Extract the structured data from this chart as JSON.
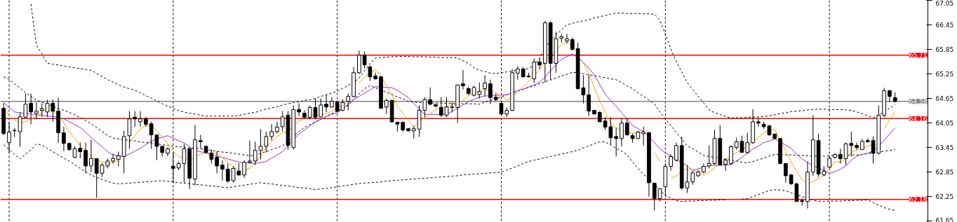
{
  "chart_data": {
    "type": "candlestick",
    "categories": [
      null,
      null,
      null,
      null,
      null,
      null,
      null,
      null,
      null,
      null,
      null,
      null,
      null,
      null,
      null,
      null,
      null,
      null,
      null,
      null,
      null,
      null,
      null,
      null,
      null,
      null,
      null,
      null,
      null,
      null,
      null,
      null,
      null,
      null,
      null,
      null,
      null,
      null,
      null,
      null,
      null,
      null,
      null,
      null,
      null,
      null,
      null,
      null,
      null,
      null,
      null,
      null,
      null,
      null,
      null,
      null,
      null,
      null,
      null,
      null,
      null,
      null,
      null,
      null,
      null,
      null,
      null,
      null,
      null,
      null,
      null,
      null,
      null,
      null,
      null,
      null,
      null,
      null,
      null,
      null,
      null,
      null,
      null,
      null,
      null,
      null,
      null,
      null,
      null,
      null,
      null,
      null,
      null,
      null,
      null,
      null,
      null,
      null,
      null,
      null,
      null,
      null,
      null,
      null,
      null,
      null,
      null,
      null,
      null,
      null,
      null,
      null,
      null,
      null,
      null,
      null,
      null,
      null,
      null,
      null,
      null,
      null,
      null,
      null,
      null,
      null,
      null,
      null,
      null,
      null,
      null,
      null,
      null,
      null,
      null,
      null,
      null,
      null,
      null,
      null,
      null,
      null,
      null,
      null,
      null,
      null,
      null,
      null,
      null,
      null,
      null,
      null,
      null,
      null,
      null,
      null,
      null,
      null,
      null,
      null,
      null,
      null,
      null,
      null
    ],
    "ohlc": [
      [
        64.41,
        64.53,
        63.76,
        63.79
      ],
      [
        63.57,
        64.08,
        63.33,
        63.83
      ],
      [
        63.86,
        63.93,
        63.71,
        63.87
      ],
      [
        63.84,
        64.31,
        63.47,
        64.2
      ],
      [
        64.19,
        64.77,
        64.19,
        64.51
      ],
      [
        64.53,
        64.77,
        64.02,
        64.32
      ],
      [
        64.29,
        64.56,
        64.14,
        64.34
      ],
      [
        64.36,
        64.53,
        64.2,
        64.4
      ],
      [
        64.32,
        64.62,
        64.2,
        64.53
      ],
      [
        64.53,
        64.62,
        64.08,
        64.34
      ],
      [
        64.34,
        64.67,
        63.57,
        63.81
      ],
      [
        63.81,
        63.96,
        63.36,
        63.55
      ],
      [
        63.55,
        63.57,
        63.37,
        63.4
      ],
      [
        63.21,
        63.48,
        63.19,
        63.42
      ],
      [
        63.43,
        63.57,
        63.19,
        63.35
      ],
      [
        63.38,
        63.57,
        62.82,
        63.0
      ],
      [
        63.0,
        63.64,
        62.85,
        63.18
      ],
      [
        63.18,
        63.18,
        62.22,
        62.82
      ],
      [
        62.82,
        63.07,
        62.73,
        63.02
      ],
      [
        63.0,
        63.18,
        62.94,
        63.12
      ],
      [
        63.12,
        63.3,
        63.06,
        63.18
      ],
      [
        63.16,
        63.35,
        62.99,
        63.25
      ],
      [
        63.23,
        63.86,
        62.82,
        63.72
      ],
      [
        63.74,
        64.34,
        63.42,
        64.15
      ],
      [
        64.19,
        64.34,
        63.96,
        64.15
      ],
      [
        64.08,
        64.34,
        63.96,
        64.15
      ],
      [
        64.15,
        64.2,
        63.96,
        64.02
      ],
      [
        64.03,
        64.08,
        63.42,
        63.76
      ],
      [
        63.76,
        63.76,
        63.14,
        63.48
      ],
      [
        63.48,
        63.48,
        63.23,
        63.33
      ],
      [
        63.31,
        63.45,
        63.24,
        63.42
      ],
      [
        62.99,
        63.33,
        62.59,
        62.94
      ],
      [
        62.95,
        63.11,
        62.9,
        63.06
      ],
      [
        63.06,
        63.54,
        62.59,
        63.42
      ],
      [
        63.42,
        63.42,
        62.44,
        62.7
      ],
      [
        62.68,
        64.0,
        62.52,
        63.64
      ],
      [
        63.62,
        63.76,
        63.43,
        63.59
      ],
      [
        63.48,
        63.5,
        63.31,
        63.33
      ],
      [
        63.31,
        63.4,
        63.06,
        63.16
      ],
      [
        63.21,
        63.36,
        62.82,
        63.0
      ],
      [
        63.02,
        63.14,
        62.64,
        62.92
      ],
      [
        62.92,
        63.06,
        62.59,
        62.63
      ],
      [
        62.64,
        62.99,
        62.59,
        62.94
      ],
      [
        62.87,
        63.07,
        62.76,
        62.78
      ],
      [
        62.78,
        63.14,
        62.71,
        63.09
      ],
      [
        63.09,
        63.62,
        63.06,
        63.12
      ],
      [
        63.12,
        63.59,
        63.02,
        63.38
      ],
      [
        63.38,
        63.9,
        63.16,
        63.48
      ],
      [
        63.48,
        63.84,
        63.33,
        63.72
      ],
      [
        63.72,
        64.02,
        63.62,
        63.84
      ],
      [
        63.84,
        64.08,
        63.79,
        63.95
      ],
      [
        63.96,
        64.34,
        63.84,
        64.2
      ],
      [
        64.24,
        64.34,
        63.4,
        63.5
      ],
      [
        63.45,
        64.48,
        63.4,
        64.38
      ],
      [
        64.38,
        64.53,
        64.22,
        64.32
      ],
      [
        64.29,
        64.36,
        64.14,
        64.19
      ],
      [
        64.19,
        64.48,
        64.14,
        64.43
      ],
      [
        64.43,
        64.65,
        64.14,
        64.19
      ],
      [
        64.2,
        64.65,
        64.19,
        64.49
      ],
      [
        64.51,
        64.74,
        64.31,
        64.44
      ],
      [
        64.44,
        64.68,
        64.43,
        64.58
      ],
      [
        64.56,
        64.6,
        64.31,
        64.34
      ],
      [
        64.36,
        64.63,
        64.34,
        64.55
      ],
      [
        64.58,
        64.77,
        64.36,
        64.7
      ],
      [
        64.7,
        65.42,
        64.68,
        65.28
      ],
      [
        65.28,
        65.82,
        65.25,
        65.71
      ],
      [
        65.71,
        65.8,
        65.39,
        65.47
      ],
      [
        65.42,
        65.46,
        65.08,
        65.18
      ],
      [
        65.2,
        65.28,
        65.11,
        65.13
      ],
      [
        65.18,
        65.2,
        64.39,
        64.41
      ],
      [
        64.44,
        64.65,
        64.27,
        64.6
      ],
      [
        64.6,
        64.63,
        64.05,
        64.08
      ],
      [
        64.07,
        64.08,
        63.84,
        64.02
      ],
      [
        64.07,
        64.08,
        63.83,
        63.88
      ],
      [
        63.91,
        63.93,
        63.83,
        63.86
      ],
      [
        63.86,
        63.98,
        63.67,
        63.91
      ],
      [
        63.9,
        64.48,
        63.71,
        64.36
      ],
      [
        64.36,
        64.68,
        64.19,
        64.62
      ],
      [
        64.62,
        64.92,
        64.48,
        64.51
      ],
      [
        64.5,
        64.53,
        64.43,
        64.46
      ],
      [
        64.43,
        64.68,
        64.2,
        64.24
      ],
      [
        64.24,
        64.68,
        64.19,
        64.44
      ],
      [
        64.44,
        64.56,
        64.31,
        64.43
      ],
      [
        64.43,
        64.99,
        64.05,
        64.98
      ],
      [
        65.01,
        65.35,
        64.87,
        64.96
      ],
      [
        64.89,
        64.94,
        64.73,
        64.77
      ],
      [
        64.73,
        64.96,
        64.7,
        64.92
      ],
      [
        64.75,
        65.04,
        64.65,
        64.82
      ],
      [
        64.89,
        65.22,
        64.7,
        65.03
      ],
      [
        65.01,
        65.11,
        64.51,
        64.67
      ],
      [
        64.68,
        64.77,
        64.58,
        64.62
      ],
      [
        64.53,
        64.6,
        64.22,
        64.27
      ],
      [
        64.27,
        64.43,
        64.2,
        64.36
      ],
      [
        64.36,
        65.37,
        64.34,
        65.28
      ],
      [
        65.27,
        65.44,
        65.11,
        65.37
      ],
      [
        65.37,
        65.42,
        65.16,
        65.18
      ],
      [
        65.2,
        65.28,
        65.16,
        65.18
      ],
      [
        65.13,
        65.63,
        65.03,
        65.54
      ],
      [
        65.54,
        65.63,
        65.37,
        65.47
      ],
      [
        65.51,
        66.54,
        65.04,
        66.5
      ],
      [
        66.5,
        66.54,
        65.11,
        65.51
      ],
      [
        65.51,
        66.28,
        65.28,
        66.11
      ],
      [
        66.12,
        66.23,
        66.02,
        66.16
      ],
      [
        66.06,
        66.23,
        65.99,
        66.11
      ],
      [
        66.09,
        66.14,
        65.82,
        65.85
      ],
      [
        65.87,
        66.02,
        64.87,
        64.89
      ],
      [
        64.91,
        65.22,
        64.53,
        64.74
      ],
      [
        64.74,
        65.22,
        64.22,
        64.34
      ],
      [
        64.36,
        64.36,
        64.26,
        64.27
      ],
      [
        64.31,
        64.34,
        64.08,
        64.08
      ],
      [
        64.1,
        64.19,
        63.88,
        63.95
      ],
      [
        63.96,
        64.19,
        63.52,
        63.69
      ],
      [
        63.72,
        63.93,
        63.23,
        63.67
      ],
      [
        63.67,
        64.17,
        63.48,
        64.05
      ],
      [
        64.05,
        64.17,
        63.74,
        63.76
      ],
      [
        63.74,
        63.79,
        63.57,
        63.67
      ],
      [
        63.67,
        63.86,
        63.66,
        63.83
      ],
      [
        63.79,
        63.96,
        63.5,
        63.83
      ],
      [
        63.81,
        63.84,
        62.25,
        62.59
      ],
      [
        62.58,
        62.59,
        61.91,
        62.2
      ],
      [
        62.2,
        62.46,
        62.13,
        62.44
      ],
      [
        62.49,
        63.06,
        62.25,
        62.99
      ],
      [
        62.99,
        63.28,
        62.88,
        63.23
      ],
      [
        63.14,
        63.57,
        63.11,
        63.5
      ],
      [
        63.5,
        63.71,
        62.42,
        62.46
      ],
      [
        62.46,
        63.02,
        62.34,
        62.61
      ],
      [
        62.61,
        62.88,
        62.54,
        62.83
      ],
      [
        62.76,
        62.9,
        62.73,
        62.85
      ],
      [
        62.85,
        63.06,
        62.82,
        62.99
      ],
      [
        63.0,
        63.5,
        62.94,
        63.06
      ],
      [
        63.06,
        63.88,
        63.02,
        63.67
      ],
      [
        63.67,
        64.0,
        63.02,
        63.02
      ],
      [
        63.04,
        63.19,
        62.88,
        63.14
      ],
      [
        63.06,
        63.5,
        63.02,
        63.47
      ],
      [
        63.45,
        63.69,
        63.4,
        63.59
      ],
      [
        63.6,
        63.74,
        63.33,
        63.33
      ],
      [
        63.33,
        63.81,
        63.3,
        63.57
      ],
      [
        63.57,
        64.39,
        63.54,
        64.08
      ],
      [
        64.08,
        64.17,
        63.96,
        64.05
      ],
      [
        64.02,
        64.08,
        63.91,
        63.96
      ],
      [
        63.98,
        64.0,
        63.74,
        63.76
      ],
      [
        63.78,
        63.79,
        63.66,
        63.67
      ],
      [
        63.67,
        63.67,
        63.04,
        63.06
      ],
      [
        63.06,
        63.06,
        62.59,
        62.76
      ],
      [
        62.78,
        62.8,
        62.54,
        62.56
      ],
      [
        62.56,
        62.59,
        62.13,
        62.13
      ],
      [
        62.15,
        62.2,
        62.03,
        62.13
      ],
      [
        62.13,
        63.11,
        61.96,
        62.85
      ],
      [
        62.85,
        64.24,
        62.76,
        63.64
      ],
      [
        63.62,
        63.79,
        62.73,
        62.8
      ],
      [
        62.78,
        62.99,
        62.75,
        62.87
      ],
      [
        62.97,
        63.23,
        62.94,
        63.19
      ],
      [
        63.21,
        63.31,
        63.18,
        63.28
      ],
      [
        63.28,
        63.42,
        63.06,
        63.18
      ],
      [
        63.18,
        63.57,
        63.02,
        63.54
      ],
      [
        63.55,
        63.84,
        63.23,
        63.5
      ],
      [
        63.5,
        63.57,
        63.4,
        63.45
      ],
      [
        63.4,
        63.66,
        63.4,
        63.6
      ],
      [
        63.62,
        63.67,
        63.57,
        63.59
      ],
      [
        63.62,
        63.72,
        63.06,
        63.31
      ],
      [
        63.31,
        64.48,
        63.28,
        64.24
      ],
      [
        64.24,
        64.91,
        64.19,
        64.84
      ],
      [
        64.84,
        64.86,
        64.56,
        64.7
      ],
      [
        64.67,
        64.8,
        64.55,
        64.58
      ]
    ],
    "color": "#000000",
    "series": [
      {
        "type": "line",
        "color": "#000000",
        "line_style": "dashed",
        "values": [
          null,
          null,
          null,
          null,
          null,
          66.96,
          65.95,
          65.74,
          65.51,
          65.49,
          65.47,
          65.44,
          65.42,
          65.4,
          65.38,
          65.36,
          65.34,
          65.26,
          65.19,
          65.11,
          65.05,
          64.98,
          64.93,
          64.89,
          64.85,
          64.79,
          64.72,
          64.66,
          64.59,
          64.52,
          64.46,
          64.41,
          64.35,
          64.32,
          64.29,
          64.27,
          64.24,
          64.22,
          64.22,
          64.22,
          64.22,
          64.22,
          64.22,
          64.24,
          64.26,
          64.29,
          64.31,
          64.35,
          64.39,
          64.42,
          64.45,
          64.49,
          64.52,
          64.55,
          64.57,
          64.6,
          64.62,
          64.65,
          64.7,
          64.74,
          64.78,
          64.83,
          64.9,
          64.97,
          65.04,
          65.15,
          65.33,
          65.51,
          65.64,
          65.65,
          65.66,
          65.67,
          65.68,
          65.68,
          65.68,
          65.67,
          65.67,
          65.67,
          65.66,
          65.66,
          65.65,
          65.65,
          65.65,
          65.64,
          65.57,
          65.51,
          65.4,
          65.34,
          65.31,
          65.27,
          65.26,
          65.28,
          65.3,
          65.32,
          65.34,
          65.36,
          65.38,
          65.46,
          65.63,
          65.89,
          66.06,
          66.2,
          66.33,
          66.45,
          66.49,
          66.52,
          66.55,
          66.58,
          66.62,
          66.65,
          66.68,
          66.71,
          66.74,
          66.74,
          66.73,
          66.73,
          66.73,
          66.72,
          66.72,
          66.71,
          66.57,
          66.22,
          65.86,
          65.55,
          65.3,
          65.04,
          64.87,
          64.71,
          64.54,
          64.37,
          64.3,
          64.26,
          64.21,
          64.17,
          64.18,
          64.18,
          64.19,
          64.19,
          64.2,
          64.21,
          64.23,
          64.25,
          64.28,
          64.3,
          64.33,
          64.34,
          64.35,
          64.37,
          64.38,
          64.39,
          64.39,
          64.38,
          64.38,
          64.38,
          64.37,
          64.36,
          64.32,
          64.28,
          64.23,
          64.18,
          64.24,
          64.33,
          64.41,
          64.5
        ]
      },
      {
        "type": "line",
        "color": "#000000",
        "line_style": "dashed",
        "values": [
          65.18,
          65.12,
          65.01,
          64.9,
          64.79,
          64.7,
          64.61,
          64.56,
          64.51,
          64.46,
          64.41,
          64.36,
          64.31,
          64.25,
          64.18,
          64.11,
          64.03,
          63.94,
          63.84,
          63.75,
          63.68,
          63.66,
          63.64,
          63.63,
          63.61,
          63.59,
          63.57,
          63.56,
          63.54,
          63.52,
          63.5,
          63.48,
          63.47,
          63.46,
          63.44,
          63.43,
          63.42,
          63.4,
          63.38,
          63.36,
          63.34,
          63.33,
          63.31,
          63.29,
          63.27,
          63.25,
          63.26,
          63.31,
          63.35,
          63.4,
          63.44,
          63.49,
          63.59,
          63.72,
          63.84,
          63.94,
          64.01,
          64.08,
          64.14,
          64.21,
          64.28,
          64.34,
          64.41,
          64.48,
          64.62,
          64.76,
          64.89,
          64.97,
          64.91,
          64.86,
          64.8,
          64.75,
          64.69,
          64.64,
          64.58,
          64.56,
          64.55,
          64.55,
          64.54,
          64.54,
          64.54,
          64.53,
          64.53,
          64.53,
          64.52,
          64.52,
          64.52,
          64.51,
          64.56,
          64.6,
          64.65,
          64.69,
          64.74,
          64.78,
          64.83,
          64.87,
          64.92,
          64.96,
          65.01,
          65.06,
          65.1,
          65.15,
          65.2,
          65.24,
          65.29,
          65.28,
          65.26,
          65.23,
          65.21,
          65.18,
          65.16,
          65.13,
          65.11,
          65.04,
          64.96,
          64.89,
          64.79,
          64.7,
          64.61,
          64.52,
          64.32,
          64.15,
          63.99,
          63.82,
          63.65,
          63.49,
          63.42,
          63.34,
          63.26,
          63.23,
          63.21,
          63.19,
          63.16,
          63.14,
          63.12,
          63.09,
          63.07,
          63.11,
          63.15,
          63.19,
          63.24,
          63.28,
          63.28,
          63.27,
          63.27,
          63.26,
          63.26,
          63.25,
          63.24,
          63.24,
          63.24,
          63.25,
          63.25,
          63.26,
          63.26,
          63.27,
          63.27,
          63.28,
          63.3,
          63.32,
          63.34,
          63.36,
          63.38,
          63.4
        ]
      },
      {
        "type": "line",
        "color": "#000000",
        "line_style": "dashed",
        "values": [
          63.52,
          63.4,
          63.28,
          63.17,
          63.29,
          63.39,
          63.54,
          63.51,
          63.43,
          63.35,
          63.27,
          63.19,
          63.12,
          63.03,
          62.94,
          62.86,
          62.78,
          62.72,
          62.67,
          62.62,
          62.58,
          62.56,
          62.57,
          62.58,
          62.59,
          62.6,
          62.61,
          62.62,
          62.63,
          62.64,
          62.62,
          62.61,
          62.59,
          62.58,
          62.56,
          62.55,
          62.54,
          62.52,
          62.51,
          62.5,
          62.48,
          62.47,
          62.49,
          62.51,
          62.53,
          62.55,
          62.57,
          62.59,
          62.57,
          62.56,
          62.54,
          62.52,
          62.51,
          62.49,
          62.47,
          62.46,
          62.44,
          62.42,
          62.44,
          62.45,
          62.47,
          62.49,
          62.51,
          62.53,
          62.55,
          62.57,
          62.58,
          62.59,
          62.6,
          62.61,
          62.63,
          62.64,
          62.65,
          62.66,
          62.67,
          62.68,
          62.69,
          62.7,
          62.71,
          62.72,
          62.73,
          62.74,
          62.75,
          62.76,
          62.78,
          62.79,
          62.8,
          62.81,
          62.82,
          62.83,
          62.84,
          62.85,
          62.9,
          62.95,
          63.0,
          63.06,
          63.11,
          63.14,
          63.17,
          63.2,
          63.23,
          63.26,
          63.29,
          63.32,
          63.35,
          63.38,
          63.44,
          63.49,
          63.54,
          63.59,
          63.59,
          63.51,
          63.43,
          63.36,
          63.28,
          63.09,
          62.94,
          62.79,
          62.7,
          62.56,
          62.41,
          62.27,
          62.21,
          62.15,
          62.13,
          62.14,
          62.14,
          62.15,
          62.15,
          62.16,
          62.16,
          62.17,
          62.17,
          null,
          null,
          62.19,
          62.2,
          62.25,
          62.3,
          62.35,
          62.4,
          62.42,
          62.41,
          62.39,
          62.34,
          62.3,
          62.25,
          62.21,
          62.16,
          62.13,
          62.13,
          62.14,
          62.14,
          62.14,
          62.15,
          62.15,
          62.16,
          62.16,
          62.17,
          62.1,
          62.04,
          61.98,
          61.94,
          61.91
        ]
      },
      {
        "type": "line",
        "color": "#9932cc",
        "line_style": "solid",
        "values": [
          64.55,
          64.43,
          64.32,
          64.3,
          64.28,
          64.27,
          64.25,
          64.24,
          64.22,
          64.21,
          64.19,
          64.15,
          64.08,
          64.01,
          63.94,
          63.82,
          63.7,
          63.58,
          63.47,
          63.35,
          63.27,
          63.25,
          63.23,
          63.29,
          63.36,
          63.43,
          63.52,
          63.61,
          63.66,
          63.7,
          63.74,
          63.68,
          63.62,
          63.56,
          63.47,
          63.38,
          63.35,
          63.31,
          63.28,
          63.24,
          63.21,
          63.17,
          63.13,
          63.1,
          63.07,
          63.07,
          63.06,
          63.08,
          63.11,
          63.19,
          63.27,
          63.35,
          63.5,
          63.64,
          63.78,
          63.88,
          63.98,
          64.07,
          64.14,
          64.21,
          64.26,
          64.3,
          64.39,
          64.51,
          64.63,
          64.7,
          64.78,
          64.86,
          64.94,
          64.93,
          64.92,
          64.91,
          64.85,
          64.76,
          64.67,
          64.53,
          64.39,
          64.26,
          64.26,
          64.26,
          64.26,
          64.26,
          64.33,
          64.41,
          64.49,
          64.57,
          64.63,
          64.68,
          64.71,
          64.72,
          64.73,
          64.73,
          64.74,
          64.79,
          64.85,
          64.88,
          64.93,
          64.98,
          65.05,
          65.17,
          65.33,
          65.47,
          65.61,
          65.67,
          65.74,
          65.65,
          65.53,
          65.39,
          65.23,
          64.99,
          64.76,
          64.6,
          64.46,
          64.3,
          64.15,
          63.99,
          63.91,
          63.84,
          63.72,
          63.57,
          63.42,
          63.32,
          63.25,
          63.14,
          63.09,
          63.0,
          62.89,
          62.93,
          62.97,
          63.01,
          63.02,
          63.02,
          63.02,
          63.03,
          63.12,
          63.21,
          63.31,
          63.41,
          63.49,
          63.57,
          63.61,
          63.66,
          63.59,
          63.51,
          63.43,
          63.29,
          63.17,
          63.09,
          63.0,
          62.95,
          62.89,
          62.82,
          62.86,
          62.92,
          63.0,
          63.14,
          63.24,
          63.28,
          63.31,
          63.37,
          63.48,
          63.63,
          63.78,
          63.93
        ]
      },
      {
        "type": "line",
        "color": "#ffa500",
        "line_style": "solid",
        "values": [
          64.39,
          64.24,
          64.13,
          64.04,
          64.09,
          64.14,
          64.22,
          64.31,
          64.39,
          64.33,
          64.26,
          64.05,
          63.84,
          63.67,
          63.5,
          63.37,
          63.23,
          63.15,
          63.1,
          63.06,
          63.08,
          63.13,
          null,
          63.57,
          63.74,
          63.91,
          63.99,
          64.01,
          63.86,
          63.71,
          63.54,
          63.37,
          63.23,
          63.19,
          63.15,
          63.21,
          63.29,
          63.32,
          63.32,
          63.31,
          63.2,
          63.09,
          62.99,
          62.88,
          62.91,
          62.94,
          63.07,
          63.25,
          63.45,
          63.59,
          63.73,
          63.81,
          63.84,
          63.96,
          64.09,
          64.16,
          64.22,
          64.23,
          64.25,
          64.27,
          64.34,
          64.42,
          64.49,
          64.57,
          null,
          65.04,
          65.16,
          65.27,
          65.35,
          65.2,
          64.97,
          64.73,
          64.46,
          64.29,
          64.12,
          63.96,
          64.08,
          64.18,
          64.28,
          64.37,
          64.44,
          64.46,
          64.49,
          64.51,
          64.61,
          64.7,
          64.79,
          64.84,
          64.87,
          64.83,
          64.79,
          64.7,
          64.61,
          64.69,
          64.81,
          64.94,
          65.07,
          65.21,
          65.35,
          65.53,
          65.72,
          65.83,
          65.96,
          66.05,
          65.92,
          null,
          65.51,
          65.27,
          64.93,
          64.59,
          64.32,
          64.04,
          63.94,
          63.88,
          63.82,
          63.8,
          63.81,
          63.82,
          null,
          63.33,
          63.12,
          null,
          62.7,
          62.75,
          62.88,
          62.93,
          62.9,
          62.85,
          62.77,
          62.86,
          62.95,
          63.05,
          63.15,
          63.24,
          63.32,
          63.4,
          63.48,
          63.58,
          63.7,
          63.81,
          63.86,
          63.89,
          63.63,
          63.37,
          63.1,
          62.86,
          62.67,
          62.56,
          62.62,
          62.69,
          62.77,
          62.9,
          63.11,
          63.09,
          63.17,
          63.33,
          63.39,
          63.44,
          63.48,
          63.54,
          null,
          63.91,
          64.12,
          64.33
        ]
      }
    ],
    "ylim": [
      61.62,
      67.05
    ],
    "yticks": [
      61.65,
      62.25,
      62.85,
      63.45,
      64.05,
      64.65,
      65.25,
      65.85,
      66.45,
      67.05
    ],
    "tick_labels": "y",
    "ref_lines": [
      {
        "axis": "y",
        "value": 64.58,
        "label": "64.58",
        "color": "#808080",
        "line_style": "solid"
      },
      {
        "axis": "y",
        "value": 65.71,
        "label": "65.71",
        "color": "#ff0000",
        "line_style": "solid"
      },
      {
        "axis": "y",
        "value": 64.16,
        "label": "64.16",
        "color": "#ff0000",
        "line_style": "solid"
      },
      {
        "axis": "y",
        "value": 62.18,
        "label": "62.18",
        "color": "#ff0000",
        "line_style": "solid"
      }
    ]
  }
}
